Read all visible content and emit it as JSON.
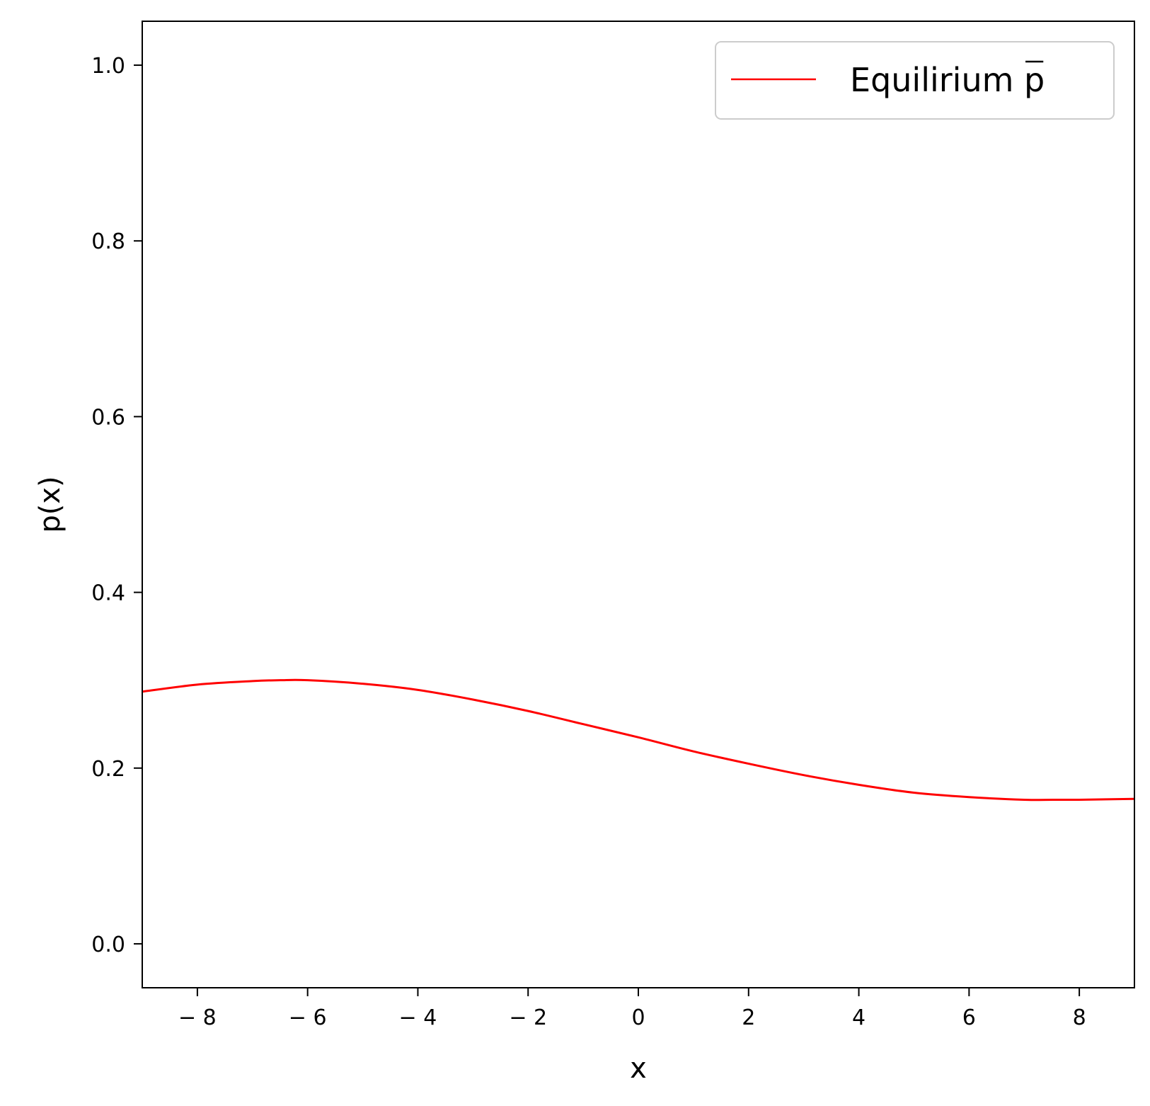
{
  "chart_data": {
    "type": "line",
    "xlabel": "x",
    "ylabel": "p(x)",
    "xlim": [
      -9,
      9
    ],
    "ylim": [
      -0.05,
      1.05
    ],
    "xticks": [
      -8,
      -6,
      -4,
      -2,
      0,
      2,
      4,
      6,
      8
    ],
    "xtick_labels": [
      "− 8",
      "− 6",
      "− 4",
      "− 2",
      "0",
      "2",
      "4",
      "6",
      "8"
    ],
    "yticks": [
      0.0,
      0.2,
      0.4,
      0.6,
      0.8,
      1.0
    ],
    "ytick_labels": [
      "0.0",
      "0.2",
      "0.4",
      "0.6",
      "0.8",
      "1.0"
    ],
    "grid": false,
    "legend_position": "top-right",
    "series": [
      {
        "name": "Equilirium ",
        "name_math": "p",
        "color": "#ff0000",
        "x": [
          -9,
          -8,
          -7,
          -6.5,
          -6,
          -5,
          -4,
          -3,
          -2,
          -1,
          0,
          1,
          2,
          3,
          4,
          5,
          6,
          7,
          7.7,
          8,
          9
        ],
        "y": [
          0.287,
          0.295,
          0.299,
          0.3,
          0.3,
          0.296,
          0.289,
          0.278,
          0.265,
          0.25,
          0.235,
          0.219,
          0.205,
          0.192,
          0.181,
          0.172,
          0.167,
          0.164,
          0.164,
          0.164,
          0.165
        ]
      }
    ]
  }
}
